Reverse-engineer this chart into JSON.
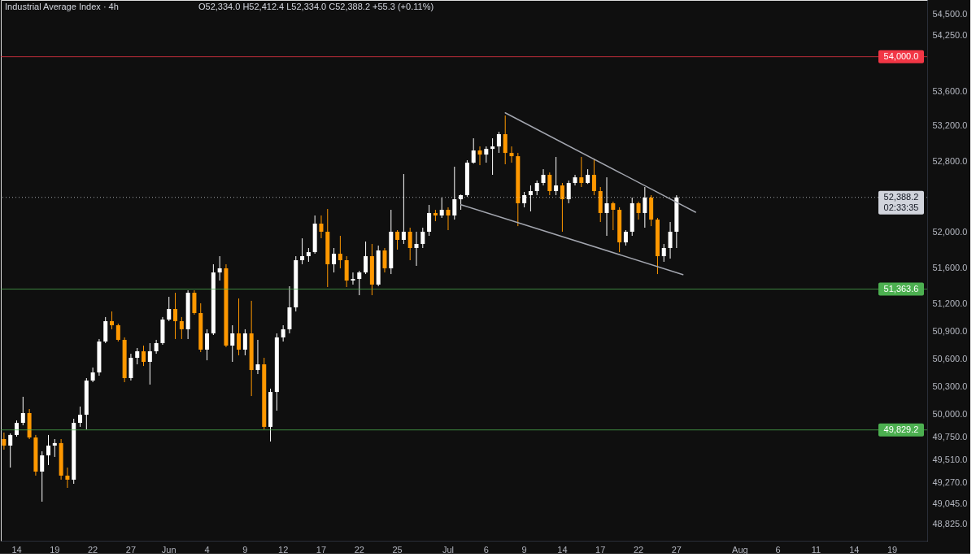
{
  "chart_data": {
    "type": "candlestick",
    "title": "Industrial Average Index · 4h",
    "annotations": [
      "O52,334.0 H52,412.4 L52,334.0 C52,388.2 +55.3 (+0.11%)",
      {
        "text": "02:33:35",
        "y": 52388.2
      }
    ],
    "categories": [
      null,
      null,
      "14",
      null,
      null,
      null,
      null,
      null,
      "19",
      null,
      null,
      null,
      null,
      null,
      "22",
      null,
      null,
      null,
      null,
      null,
      "27",
      null,
      null,
      null,
      null,
      null,
      "Jun",
      null,
      null,
      null,
      null,
      null,
      "4",
      null,
      null,
      null,
      null,
      null,
      "9",
      null,
      null,
      null,
      null,
      null,
      "12",
      null,
      null,
      null,
      null,
      null,
      "17",
      null,
      null,
      null,
      null,
      null,
      "22",
      null,
      null,
      null,
      null,
      null,
      "25",
      null,
      null,
      null,
      null,
      null,
      null,
      null,
      "Jul",
      null,
      null,
      null,
      null,
      null,
      "6",
      null,
      null,
      null,
      null,
      null,
      "9",
      null,
      null,
      null,
      null,
      null,
      "14",
      null,
      null,
      null,
      null,
      null,
      "17",
      null,
      null,
      null,
      null,
      null,
      "22",
      null,
      null,
      null,
      null,
      null,
      "27",
      null,
      null,
      null,
      null,
      null,
      null,
      null,
      null,
      null,
      "Aug",
      null,
      null,
      null,
      null,
      null,
      "6",
      null,
      null,
      null,
      null,
      null,
      "11",
      null,
      null,
      null,
      null,
      null,
      "14",
      null,
      null,
      null,
      null,
      null,
      "19",
      null,
      null,
      null,
      null,
      null
    ],
    "ohlc": [
      [
        49731,
        49801,
        49618,
        49661
      ],
      [
        49661,
        49792,
        49427,
        49775
      ],
      [
        49775,
        49931,
        49757,
        49905
      ],
      [
        49905,
        50186,
        49879,
        50010
      ],
      [
        50010,
        50054,
        49731,
        49748
      ],
      [
        49748,
        49775,
        49341,
        49384
      ],
      [
        49384,
        49600,
        49065,
        49557
      ],
      [
        49557,
        49775,
        49453,
        49661
      ],
      [
        49661,
        49731,
        49540,
        49688
      ],
      [
        49688,
        49731,
        49298,
        49341
      ],
      [
        49341,
        49427,
        49211,
        49298
      ],
      [
        49298,
        49949,
        49254,
        49905
      ],
      [
        49905,
        50080,
        49862,
        49992
      ],
      [
        49992,
        50388,
        49836,
        50362
      ],
      [
        50362,
        50503,
        50344,
        50450
      ],
      [
        50450,
        50814,
        50414,
        50787
      ],
      [
        50787,
        51055,
        50769,
        51010
      ],
      [
        51010,
        51117,
        50921,
        50965
      ],
      [
        50965,
        50983,
        50787,
        50805
      ],
      [
        50805,
        50832,
        50344,
        50388
      ],
      [
        50388,
        50653,
        50362,
        50609
      ],
      [
        50609,
        50716,
        50538,
        50680
      ],
      [
        50680,
        50742,
        50520,
        50565
      ],
      [
        50565,
        50769,
        50318,
        50680
      ],
      [
        50680,
        50805,
        50653,
        50769
      ],
      [
        50769,
        51055,
        50751,
        51028
      ],
      [
        51028,
        51278,
        51010,
        51144
      ],
      [
        51144,
        51323,
        50814,
        51010
      ],
      [
        51010,
        51055,
        50814,
        50921
      ],
      [
        50921,
        51350,
        50814,
        51323
      ],
      [
        51323,
        51350,
        51081,
        51099
      ],
      [
        51099,
        51207,
        50671,
        50698
      ],
      [
        50698,
        50921,
        50582,
        50876
      ],
      [
        50876,
        51639,
        50858,
        51548
      ],
      [
        51548,
        51729,
        51458,
        51594
      ],
      [
        51594,
        51639,
        50725,
        50742
      ],
      [
        50742,
        50965,
        50565,
        50876
      ],
      [
        50876,
        51260,
        50636,
        50698
      ],
      [
        50698,
        50921,
        50636,
        50876
      ],
      [
        50876,
        51234,
        50194,
        50476
      ],
      [
        50476,
        50805,
        50432,
        50538
      ],
      [
        50538,
        50609,
        49836,
        49862
      ],
      [
        49862,
        50274,
        49705,
        50238
      ],
      [
        50238,
        50876,
        50036,
        50832
      ],
      [
        50832,
        50965,
        50787,
        50921
      ],
      [
        50921,
        51395,
        50876,
        51162
      ],
      [
        51162,
        51729,
        51117,
        51684
      ],
      [
        51684,
        51928,
        51639,
        51729
      ],
      [
        51729,
        51820,
        51666,
        51774
      ],
      [
        51774,
        52184,
        51756,
        52093
      ],
      [
        52093,
        52184,
        51929,
        52002
      ],
      [
        52002,
        52257,
        51386,
        51639
      ],
      [
        51639,
        51820,
        51548,
        51756
      ],
      [
        51756,
        51956,
        51594,
        51684
      ],
      [
        51684,
        51729,
        51386,
        51458
      ],
      [
        51458,
        51548,
        51413,
        51476
      ],
      [
        51476,
        51566,
        51296,
        51548
      ],
      [
        51548,
        51892,
        51530,
        51729
      ],
      [
        51729,
        51865,
        51296,
        51413
      ],
      [
        51413,
        51847,
        51395,
        51793
      ],
      [
        51793,
        51820,
        51548,
        51594
      ],
      [
        51594,
        52248,
        51530,
        52002
      ],
      [
        52002,
        52020,
        51802,
        51911
      ],
      [
        51911,
        52652,
        51865,
        52002
      ],
      [
        52002,
        52047,
        51684,
        51820
      ],
      [
        51820,
        52002,
        51621,
        51865
      ],
      [
        51865,
        52047,
        51820,
        52002
      ],
      [
        52002,
        52303,
        51956,
        52212
      ],
      [
        52212,
        52248,
        52120,
        52184
      ],
      [
        52184,
        52386,
        52157,
        52248
      ],
      [
        52248,
        52276,
        52020,
        52184
      ],
      [
        52184,
        52735,
        52138,
        52367
      ],
      [
        52367,
        52420,
        52248,
        52413
      ],
      [
        52413,
        52809,
        52395,
        52781
      ],
      [
        52781,
        53059,
        52770,
        52920
      ],
      [
        52920,
        52966,
        52753,
        52873
      ],
      [
        52873,
        52966,
        52781,
        52938
      ],
      [
        52938,
        53059,
        52643,
        52966
      ],
      [
        52966,
        53133,
        52892,
        53106
      ],
      [
        53106,
        53320,
        52763,
        52892
      ],
      [
        52892,
        52966,
        52781,
        52855
      ],
      [
        52855,
        52892,
        52065,
        52322
      ],
      [
        52322,
        52450,
        52276,
        52413
      ],
      [
        52413,
        52523,
        52230,
        52459
      ],
      [
        52459,
        52579,
        52413,
        52551
      ],
      [
        52551,
        52707,
        52523,
        52643
      ],
      [
        52643,
        52670,
        52413,
        52459
      ],
      [
        52459,
        52846,
        52413,
        52523
      ],
      [
        52523,
        52551,
        52002,
        52367
      ],
      [
        52367,
        52579,
        52322,
        52551
      ],
      [
        52551,
        52643,
        52523,
        52615
      ],
      [
        52615,
        52846,
        52505,
        52551
      ],
      [
        52551,
        52707,
        52540,
        52643
      ],
      [
        52643,
        52827,
        52413,
        52459
      ],
      [
        52459,
        52505,
        52111,
        52212
      ],
      [
        52212,
        52615,
        51956,
        52322
      ],
      [
        52322,
        52340,
        52020,
        52248
      ],
      [
        52248,
        52276,
        51774,
        51883
      ],
      [
        51883,
        52020,
        51847,
        52002
      ],
      [
        52002,
        52386,
        51956,
        52322
      ],
      [
        52322,
        52340,
        52138,
        52212
      ],
      [
        52212,
        52505,
        52047,
        52386
      ],
      [
        52386,
        52413,
        52065,
        52138
      ],
      [
        52138,
        52157,
        51530,
        51729
      ],
      [
        51729,
        51865,
        51666,
        51820
      ],
      [
        51820,
        52111,
        51702,
        52002
      ],
      [
        52002,
        52412.4,
        51820,
        52388.2
      ],
      null,
      null,
      null,
      null,
      null,
      null,
      null,
      null,
      null,
      null,
      null,
      null,
      null,
      null,
      null,
      null,
      null,
      null,
      null,
      null,
      null,
      null,
      null,
      null,
      null,
      null,
      null,
      null,
      null,
      null,
      null,
      null,
      null,
      null,
      null,
      null,
      null,
      null,
      null
    ],
    "colors": [
      "#ff9800",
      "#ffffff",
      "#ffffff",
      "#ffffff",
      "#ff9800",
      "#ff9800",
      "#ffffff",
      "#ffffff",
      "#ffffff",
      "#ff9800",
      "#ff9800",
      "#ffffff",
      "#ffffff",
      "#ffffff",
      "#ffffff",
      "#ffffff",
      "#ffffff",
      "#ff9800",
      "#ff9800",
      "#ff9800",
      "#ffffff",
      "#ffffff",
      "#ff9800",
      "#ffffff",
      "#ffffff",
      "#ffffff",
      "#ffffff",
      "#ff9800",
      "#ff9800",
      "#ffffff",
      "#ff9800",
      "#ff9800",
      "#ffffff",
      "#ffffff",
      "#ffffff",
      "#ff9800",
      "#ffffff",
      "#ff9800",
      "#ffffff",
      "#ff9800",
      "#ffffff",
      "#ff9800",
      "#ffffff",
      "#ffffff",
      "#ffffff",
      "#ffffff",
      "#ffffff",
      "#ffffff",
      "#ffffff",
      "#ffffff",
      "#ff9800",
      "#ff9800",
      "#ffffff",
      "#ff9800",
      "#ff9800",
      "#ffffff",
      "#ffffff",
      "#ffffff",
      "#ff9800",
      "#ffffff",
      "#ff9800",
      "#ffffff",
      "#ff9800",
      "#ffffff",
      "#ff9800",
      "#ffffff",
      "#ffffff",
      "#ffffff",
      "#ff9800",
      "#ffffff",
      "#ff9800",
      "#ffffff",
      "#ffffff",
      "#ffffff",
      "#ffffff",
      "#ff9800",
      "#ffffff",
      "#ffffff",
      "#ffffff",
      "#ff9800",
      "#ff9800",
      "#ff9800",
      "#ffffff",
      "#ffffff",
      "#ffffff",
      "#ffffff",
      "#ff9800",
      "#ffffff",
      "#ff9800",
      "#ffffff",
      "#ffffff",
      "#ff9800",
      "#ffffff",
      "#ff9800",
      "#ff9800",
      "#ffffff",
      "#ff9800",
      "#ff9800",
      "#ffffff",
      "#ffffff",
      "#ff9800",
      "#ffffff",
      "#ff9800",
      "#ff9800",
      "#ffffff",
      "#ffffff",
      "#ffffff",
      null,
      null,
      null,
      null,
      null,
      null,
      null,
      null,
      null,
      null,
      null,
      null,
      null,
      null,
      null,
      null,
      null,
      null,
      null,
      null,
      null,
      null,
      null,
      null,
      null,
      null,
      null,
      null,
      null,
      null,
      null,
      null,
      null,
      null,
      null,
      null,
      null,
      null,
      null
    ],
    "series": [
      {
        "type": "line",
        "color": "#a3a6af",
        "values": [
          null,
          null,
          null,
          null,
          null,
          null,
          null,
          null,
          null,
          null,
          null,
          null,
          null,
          null,
          null,
          null,
          null,
          null,
          null,
          null,
          null,
          null,
          null,
          null,
          null,
          null,
          null,
          null,
          null,
          null,
          null,
          null,
          null,
          null,
          null,
          null,
          null,
          null,
          null,
          null,
          null,
          null,
          null,
          null,
          null,
          null,
          null,
          null,
          null,
          null,
          null,
          null,
          null,
          null,
          null,
          null,
          null,
          null,
          null,
          null,
          null,
          null,
          null,
          null,
          null,
          null,
          null,
          null,
          null,
          null,
          null,
          null,
          null,
          null,
          null,
          null,
          null,
          null,
          null,
          53351,
          null,
          null,
          null,
          null,
          null,
          null,
          null,
          null,
          null,
          null,
          null,
          null,
          null,
          null,
          null,
          null,
          null,
          null,
          null,
          null,
          null,
          null,
          null,
          null,
          null,
          null,
          null,
          null,
          null,
          52221,
          null,
          null,
          null,
          null,
          null,
          null,
          null,
          null,
          null,
          null,
          null,
          null,
          null,
          null,
          null,
          null,
          null,
          null,
          null,
          null,
          null,
          null,
          null,
          null,
          null,
          null,
          null,
          null,
          null,
          null,
          null,
          null,
          null,
          null,
          null,
          null
        ]
      },
      {
        "type": "line",
        "color": "#a3a6af",
        "values": [
          null,
          null,
          null,
          null,
          null,
          null,
          null,
          null,
          null,
          null,
          null,
          null,
          null,
          null,
          null,
          null,
          null,
          null,
          null,
          null,
          null,
          null,
          null,
          null,
          null,
          null,
          null,
          null,
          null,
          null,
          null,
          null,
          null,
          null,
          null,
          null,
          null,
          null,
          null,
          null,
          null,
          null,
          null,
          null,
          null,
          null,
          null,
          null,
          null,
          null,
          null,
          null,
          null,
          null,
          null,
          null,
          null,
          null,
          null,
          null,
          null,
          null,
          null,
          null,
          null,
          null,
          null,
          null,
          null,
          null,
          null,
          null,
          52306,
          null,
          null,
          null,
          null,
          null,
          null,
          null,
          null,
          null,
          null,
          null,
          null,
          null,
          null,
          null,
          null,
          null,
          null,
          null,
          null,
          null,
          null,
          null,
          null,
          null,
          null,
          null,
          null,
          null,
          null,
          null,
          null,
          null,
          null,
          51524,
          null,
          null,
          null,
          null,
          null,
          null,
          null,
          null,
          null,
          null,
          null,
          null,
          null,
          null,
          null,
          null,
          null,
          null,
          null,
          null,
          null,
          null,
          null,
          null,
          null,
          null,
          null,
          null,
          null,
          null,
          null,
          null,
          null,
          null,
          null,
          null,
          null,
          null
        ]
      }
    ],
    "ylim": [
      48654,
      54663
    ],
    "yticks": [
      {
        "value": 54500,
        "label": "54,500.0"
      },
      {
        "value": 54250,
        "label": "54,250.0"
      },
      {
        "value": 53600,
        "label": "53,600.0"
      },
      {
        "value": 53200,
        "label": "53,200.0"
      },
      {
        "value": 52800,
        "label": "52,800.0"
      },
      {
        "value": 52000,
        "label": "52,000.0"
      },
      {
        "value": 51600,
        "label": "51,600.0"
      },
      {
        "value": 51200,
        "label": "51,200.0"
      },
      {
        "value": 50900,
        "label": "50,900.0"
      },
      {
        "value": 50600,
        "label": "50,600.0"
      },
      {
        "value": 50300,
        "label": "50,300.0"
      },
      {
        "value": 50000,
        "label": "50,000.0"
      },
      {
        "value": 49750,
        "label": "49,750.0"
      },
      {
        "value": 49510,
        "label": "49,510.0"
      },
      {
        "value": 49270,
        "label": "49,270.0"
      },
      {
        "value": 49045,
        "label": "49,045.0"
      },
      {
        "value": 48825,
        "label": "48,825.0"
      }
    ],
    "log": "y",
    "ref_lines": [
      {
        "axis": "y",
        "value": 54000,
        "label": "54,000.0",
        "color": "#f23645"
      },
      {
        "axis": "y",
        "value": 52388.2,
        "label": "52,388.2",
        "color": "#d1d4dc",
        "line_style": "dotted"
      },
      {
        "axis": "y",
        "value": 51363.6,
        "label": "51,363.6",
        "color": "#4caf50"
      },
      {
        "axis": "y",
        "value": 49829.2,
        "label": "49,829.2",
        "color": "#4caf50"
      }
    ]
  }
}
